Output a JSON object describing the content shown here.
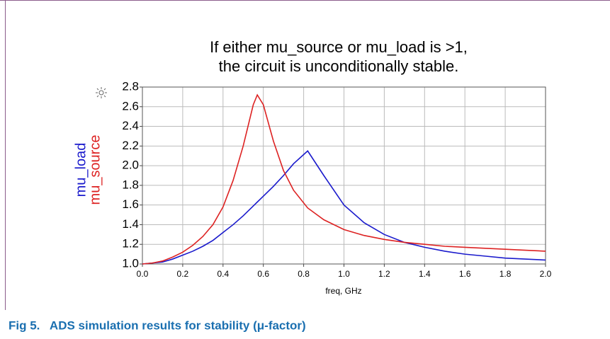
{
  "chart_data": {
    "type": "line",
    "title": [
      "If either mu_source or mu_load is >1,",
      "the circuit is unconditionally stable."
    ],
    "x_label": "freq, GHz",
    "x": [
      0,
      0.05,
      0.1,
      0.15,
      0.2,
      0.25,
      0.3,
      0.35,
      0.4,
      0.45,
      0.5,
      0.55,
      0.57,
      0.6,
      0.65,
      0.7,
      0.75,
      0.82,
      0.9,
      1.0,
      1.1,
      1.2,
      1.3,
      1.4,
      1.5,
      1.6,
      1.7,
      1.8,
      1.9,
      2.0
    ],
    "series": [
      {
        "name": "mu_load",
        "color": "#1a1acc",
        "values": [
          1.0,
          1.01,
          1.02,
          1.05,
          1.09,
          1.13,
          1.18,
          1.24,
          1.32,
          1.4,
          1.49,
          1.59,
          1.63,
          1.69,
          1.79,
          1.9,
          2.02,
          2.15,
          1.9,
          1.6,
          1.42,
          1.3,
          1.22,
          1.17,
          1.13,
          1.1,
          1.08,
          1.06,
          1.05,
          1.04
        ]
      },
      {
        "name": "mu_source",
        "color": "#dd2222",
        "values": [
          1.0,
          1.01,
          1.03,
          1.07,
          1.12,
          1.19,
          1.28,
          1.4,
          1.58,
          1.85,
          2.2,
          2.62,
          2.72,
          2.62,
          2.25,
          1.95,
          1.75,
          1.57,
          1.45,
          1.35,
          1.29,
          1.25,
          1.22,
          1.2,
          1.18,
          1.17,
          1.16,
          1.15,
          1.14,
          1.13
        ]
      }
    ],
    "xlim": [
      0,
      2
    ],
    "ylim": [
      1,
      2.8
    ],
    "xticks": [
      {
        "value": 0,
        "label": "0.0"
      },
      0.2,
      0.4,
      0.6,
      0.8,
      {
        "value": 1,
        "label": "1.0"
      },
      1.2,
      1.4,
      1.6,
      1.8,
      {
        "value": 2,
        "label": "2.0"
      }
    ],
    "yticks": [
      {
        "value": 1,
        "label": "1.0"
      },
      1.2,
      1.4,
      1.6,
      1.8,
      {
        "value": 2,
        "label": "2.0"
      },
      2.2,
      2.4,
      2.6,
      2.8
    ],
    "grid": true
  },
  "caption": "Fig 5.   ADS simulation results for stability (μ-factor)"
}
